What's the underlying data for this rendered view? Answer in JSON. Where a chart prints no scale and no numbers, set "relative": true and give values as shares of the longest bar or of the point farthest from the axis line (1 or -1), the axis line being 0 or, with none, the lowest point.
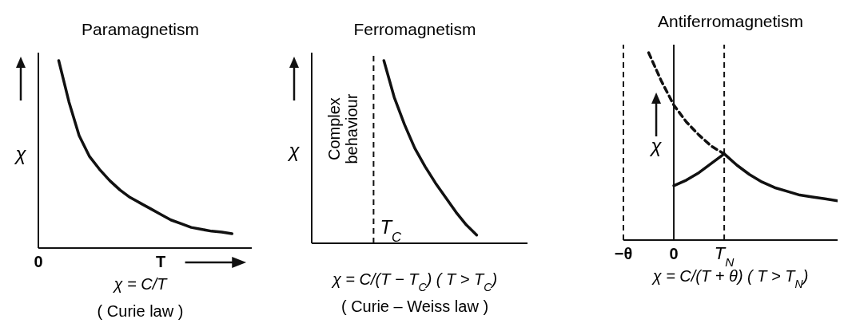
{
  "chart_data": [
    {
      "type": "line",
      "title": "Paramagnetism",
      "relative": true,
      "ylabel": "χ",
      "marker": "none",
      "categories": [
        "0",
        null,
        null,
        null,
        null,
        null,
        null,
        null,
        null,
        null,
        null,
        null,
        "T",
        null,
        null,
        null,
        null,
        null,
        null,
        null,
        null
      ],
      "series": [
        {
          "color": "#111111",
          "values": [
            null,
            null,
            1,
            0.78,
            0.6,
            0.49,
            0.42,
            0.36,
            0.31,
            0.27,
            0.24,
            0.21,
            0.18,
            0.15,
            0.13,
            0.11,
            0.1,
            0.09,
            0.085,
            0.077,
            null
          ]
        }
      ],
      "annotations": [
        "χ = C/T",
        "( Curie law )"
      ]
    },
    {
      "type": "line",
      "title": "Ferromagnetism",
      "relative": true,
      "ylabel": "χ",
      "marker": "none",
      "categories": [
        null,
        null,
        null,
        null,
        null,
        null,
        null,
        null,
        null,
        null,
        null,
        null,
        null,
        null,
        null,
        null,
        null,
        null,
        null,
        null,
        null
      ],
      "series": [
        {
          "color": "#111111",
          "values": [
            null,
            null,
            null,
            null,
            null,
            null,
            null,
            1,
            0.8,
            0.65,
            0.52,
            0.42,
            0.33,
            0.25,
            0.17,
            0.1,
            0.045,
            null,
            null,
            null,
            null
          ]
        }
      ],
      "ref_lines": [
        {
          "axis": "x",
          "label": "T$_{C}$",
          "line_style": "dashed"
        }
      ],
      "annotations": [
        {
          "text": "Complex behaviour"
        },
        "χ = C/(T − T$_{C}$)  ( T > T$_{C}$)",
        "( Curie – Weiss law )"
      ]
    },
    {
      "type": "line",
      "title": "Antiferromagnetism",
      "relative": true,
      "ylabel": "χ",
      "marker": "none",
      "categories": [
        "−θ",
        null,
        null,
        null,
        "0",
        null,
        null,
        null,
        "T$_{N}$",
        null,
        null,
        null,
        null,
        null,
        null,
        null,
        null,
        null
      ],
      "series": [
        {
          "color": "#111111",
          "values": [
            null,
            null,
            null,
            null,
            0.29,
            0.32,
            0.36,
            0.41,
            0.46,
            0.4,
            0.35,
            0.31,
            0.28,
            0.26,
            0.24,
            0.23,
            0.22,
            0.21
          ]
        },
        {
          "color": "#111111",
          "line_style": "dashed",
          "values": [
            null,
            null,
            1,
            0.85,
            0.72,
            0.63,
            0.56,
            0.5,
            0.46,
            null,
            null,
            null,
            null,
            null,
            null,
            null,
            null,
            null
          ]
        }
      ],
      "ref_lines": [
        {
          "axis": "x",
          "value": "−θ",
          "line_style": "dashed"
        },
        {
          "axis": "x",
          "value": "T$_{N}$",
          "line_style": "dashed"
        }
      ],
      "annotations": [
        "χ = C/(T + θ)  ( T > T$_{N}$)"
      ]
    }
  ]
}
